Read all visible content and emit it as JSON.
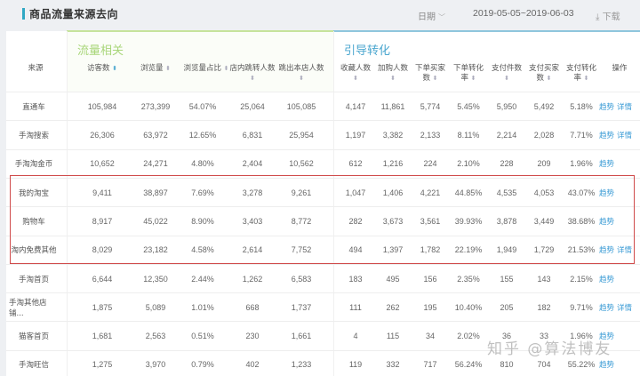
{
  "header": {
    "title": "商品流量来源去向",
    "date_label": "日期",
    "date_range": "2019-05-05~2019-06-03",
    "download_label": "下载"
  },
  "groups": {
    "flow": "流量相关",
    "guide": "引导转化"
  },
  "columns": {
    "source": "来源",
    "visitors": "访客数",
    "pageviews": "浏览量",
    "pv_share": "浏览量占比",
    "in_store_jump": "店内跳转人数",
    "exit_store": "跳出本店人数",
    "favorites": "收藏人数",
    "add_cart": "加购人数",
    "order_buyers_1": "下单买家",
    "order_buyers_2": "数",
    "order_rate_1": "下单转化",
    "order_rate_2": "率",
    "pay_items": "支付件数",
    "pay_buyers_1": "支付买家",
    "pay_buyers_2": "数",
    "pay_rate_1": "支付转化",
    "pay_rate_2": "率",
    "actions": "操作"
  },
  "action_labels": {
    "trend": "趋势",
    "detail": "详情"
  },
  "rows": [
    {
      "source": "直通车",
      "visitors": "105,984",
      "pageviews": "273,399",
      "pv_share": "54.07%",
      "in_store_jump": "25,064",
      "exit_store": "105,085",
      "favorites": "4,147",
      "add_cart": "11,861",
      "order_buyers": "5,774",
      "order_rate": "5.45%",
      "pay_items": "5,950",
      "pay_buyers": "5,492",
      "pay_rate": "5.18%",
      "trend": "趋势",
      "detail": "详情"
    },
    {
      "source": "手淘搜索",
      "visitors": "26,306",
      "pageviews": "63,972",
      "pv_share": "12.65%",
      "in_store_jump": "6,831",
      "exit_store": "25,954",
      "favorites": "1,197",
      "add_cart": "3,382",
      "order_buyers": "2,133",
      "order_rate": "8.11%",
      "pay_items": "2,214",
      "pay_buyers": "2,028",
      "pay_rate": "7.71%",
      "trend": "趋势",
      "detail": "详情"
    },
    {
      "source": "手淘淘金币",
      "visitors": "10,652",
      "pageviews": "24,271",
      "pv_share": "4.80%",
      "in_store_jump": "2,404",
      "exit_store": "10,562",
      "favorites": "612",
      "add_cart": "1,216",
      "order_buyers": "224",
      "order_rate": "2.10%",
      "pay_items": "228",
      "pay_buyers": "209",
      "pay_rate": "1.96%",
      "trend": "趋势",
      "detail": ""
    },
    {
      "source": "我的淘宝",
      "visitors": "9,411",
      "pageviews": "38,897",
      "pv_share": "7.69%",
      "in_store_jump": "3,278",
      "exit_store": "9,261",
      "favorites": "1,047",
      "add_cart": "1,406",
      "order_buyers": "4,221",
      "order_rate": "44.85%",
      "pay_items": "4,535",
      "pay_buyers": "4,053",
      "pay_rate": "43.07%",
      "trend": "趋势",
      "detail": ""
    },
    {
      "source": "购物车",
      "visitors": "8,917",
      "pageviews": "45,022",
      "pv_share": "8.90%",
      "in_store_jump": "3,403",
      "exit_store": "8,772",
      "favorites": "282",
      "add_cart": "3,673",
      "order_buyers": "3,561",
      "order_rate": "39.93%",
      "pay_items": "3,878",
      "pay_buyers": "3,449",
      "pay_rate": "38.68%",
      "trend": "趋势",
      "detail": ""
    },
    {
      "source": "淘内免费其他",
      "visitors": "8,029",
      "pageviews": "23,182",
      "pv_share": "4.58%",
      "in_store_jump": "2,614",
      "exit_store": "7,752",
      "favorites": "494",
      "add_cart": "1,397",
      "order_buyers": "1,782",
      "order_rate": "22.19%",
      "pay_items": "1,949",
      "pay_buyers": "1,729",
      "pay_rate": "21.53%",
      "trend": "趋势",
      "detail": "详情"
    },
    {
      "source": "手淘首页",
      "visitors": "6,644",
      "pageviews": "12,350",
      "pv_share": "2.44%",
      "in_store_jump": "1,262",
      "exit_store": "6,583",
      "favorites": "183",
      "add_cart": "495",
      "order_buyers": "156",
      "order_rate": "2.35%",
      "pay_items": "155",
      "pay_buyers": "143",
      "pay_rate": "2.15%",
      "trend": "趋势",
      "detail": ""
    },
    {
      "source": "手淘其他店铺...",
      "visitors": "1,875",
      "pageviews": "5,089",
      "pv_share": "1.01%",
      "in_store_jump": "668",
      "exit_store": "1,737",
      "favorites": "111",
      "add_cart": "262",
      "order_buyers": "195",
      "order_rate": "10.40%",
      "pay_items": "205",
      "pay_buyers": "182",
      "pay_rate": "9.71%",
      "trend": "趋势",
      "detail": "详情"
    },
    {
      "source": "猫客首页",
      "visitors": "1,681",
      "pageviews": "2,563",
      "pv_share": "0.51%",
      "in_store_jump": "230",
      "exit_store": "1,661",
      "favorites": "4",
      "add_cart": "115",
      "order_buyers": "34",
      "order_rate": "2.02%",
      "pay_items": "36",
      "pay_buyers": "33",
      "pay_rate": "1.96%",
      "trend": "趋势",
      "detail": ""
    },
    {
      "source": "手淘旺信",
      "visitors": "1,275",
      "pageviews": "3,970",
      "pv_share": "0.79%",
      "in_store_jump": "402",
      "exit_store": "1,233",
      "favorites": "119",
      "add_cart": "332",
      "order_buyers": "717",
      "order_rate": "56.24%",
      "pay_items": "810",
      "pay_buyers": "704",
      "pay_rate": "55.22%",
      "trend": "趋势",
      "detail": ""
    }
  ],
  "watermark": "知乎 @算法博友",
  "colors": {
    "flow_accent": "#a9d67a",
    "guide_accent": "#4aa6cf",
    "link": "#3a9bd5",
    "highlight_border": "#d04b4b"
  }
}
